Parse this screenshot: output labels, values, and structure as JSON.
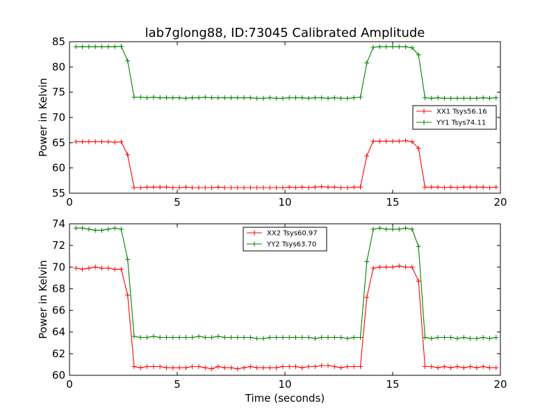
{
  "chart_data": [
    {
      "type": "line",
      "title": "lab7glong88, ID:73045 Calibrated Amplitude",
      "xlabel": "",
      "ylabel": "Power in Kelvin",
      "xlim": [
        0,
        20
      ],
      "ylim": [
        55,
        85
      ],
      "xticks": [
        "0",
        "5",
        "10",
        "15",
        "20"
      ],
      "yticks": [
        "55",
        "60",
        "65",
        "70",
        "75",
        "80",
        "85"
      ],
      "legend_position": "center-right",
      "series": [
        {
          "name": "XX1 Tsys56.16",
          "color": "#ff0000",
          "x": [
            0.3,
            0.6,
            0.9,
            1.2,
            1.5,
            1.8,
            2.1,
            2.4,
            2.7,
            3.0,
            3.3,
            3.6,
            3.9,
            4.2,
            4.5,
            4.8,
            5.1,
            5.4,
            5.7,
            6.0,
            6.3,
            6.6,
            6.9,
            7.2,
            7.5,
            7.8,
            8.1,
            8.4,
            8.7,
            9.0,
            9.3,
            9.6,
            9.9,
            10.2,
            10.5,
            10.8,
            11.1,
            11.4,
            11.7,
            12.0,
            12.3,
            12.6,
            12.9,
            13.2,
            13.5,
            13.8,
            14.1,
            14.4,
            14.7,
            15.0,
            15.3,
            15.6,
            15.9,
            16.2,
            16.5,
            16.8,
            17.1,
            17.4,
            17.7,
            18.0,
            18.3,
            18.6,
            18.9,
            19.2,
            19.5,
            19.8
          ],
          "y": [
            65.2,
            65.2,
            65.2,
            65.2,
            65.2,
            65.2,
            65.1,
            65.2,
            62.6,
            56.1,
            56.1,
            56.2,
            56.2,
            56.2,
            56.2,
            56.1,
            56.1,
            56.2,
            56.1,
            56.1,
            56.1,
            56.1,
            56.2,
            56.1,
            56.1,
            56.1,
            56.1,
            56.1,
            56.1,
            56.1,
            56.1,
            56.1,
            56.1,
            56.2,
            56.1,
            56.2,
            56.1,
            56.2,
            56.3,
            56.2,
            56.2,
            56.1,
            56.1,
            56.2,
            56.2,
            62.4,
            65.3,
            65.3,
            65.3,
            65.3,
            65.3,
            65.4,
            65.2,
            63.9,
            56.2,
            56.2,
            56.2,
            56.1,
            56.2,
            56.1,
            56.2,
            56.2,
            56.2,
            56.2,
            56.1,
            56.2
          ]
        },
        {
          "name": "YY1 Tsys74.11",
          "color": "#008000",
          "x": [
            0.3,
            0.6,
            0.9,
            1.2,
            1.5,
            1.8,
            2.1,
            2.4,
            2.7,
            3.0,
            3.3,
            3.6,
            3.9,
            4.2,
            4.5,
            4.8,
            5.1,
            5.4,
            5.7,
            6.0,
            6.3,
            6.6,
            6.9,
            7.2,
            7.5,
            7.8,
            8.1,
            8.4,
            8.7,
            9.0,
            9.3,
            9.6,
            9.9,
            10.2,
            10.5,
            10.8,
            11.1,
            11.4,
            11.7,
            12.0,
            12.3,
            12.6,
            12.9,
            13.2,
            13.5,
            13.8,
            14.1,
            14.4,
            14.7,
            15.0,
            15.3,
            15.6,
            15.9,
            16.2,
            16.5,
            16.8,
            17.1,
            17.4,
            17.7,
            18.0,
            18.3,
            18.6,
            18.9,
            19.2,
            19.5,
            19.8
          ],
          "y": [
            84.0,
            84.0,
            84.0,
            84.0,
            84.0,
            84.0,
            84.0,
            84.1,
            81.2,
            74.0,
            74.0,
            73.9,
            74.0,
            73.9,
            73.9,
            73.9,
            73.9,
            73.8,
            73.9,
            73.9,
            74.0,
            73.9,
            73.9,
            73.9,
            73.9,
            73.9,
            73.9,
            73.9,
            73.8,
            73.8,
            73.9,
            73.8,
            73.8,
            73.9,
            73.9,
            73.9,
            73.8,
            73.9,
            73.9,
            73.8,
            73.9,
            73.8,
            73.8,
            73.9,
            74.0,
            80.8,
            83.9,
            84.0,
            84.0,
            84.0,
            84.0,
            84.0,
            83.8,
            82.4,
            73.9,
            73.8,
            73.9,
            73.8,
            73.8,
            73.8,
            73.8,
            73.8,
            73.8,
            73.9,
            73.8,
            73.9
          ]
        }
      ]
    },
    {
      "type": "line",
      "title": "",
      "xlabel": "Time (seconds)",
      "ylabel": "Power in Kelvin",
      "xlim": [
        0,
        20
      ],
      "ylim": [
        60,
        74
      ],
      "xticks": [
        "0",
        "5",
        "10",
        "15",
        "20"
      ],
      "yticks": [
        "60",
        "62",
        "64",
        "66",
        "68",
        "70",
        "72",
        "74"
      ],
      "legend_position": "upper-center",
      "series": [
        {
          "name": "XX2 Tsys60.97",
          "color": "#ff0000",
          "x": [
            0.3,
            0.6,
            0.9,
            1.2,
            1.5,
            1.8,
            2.1,
            2.4,
            2.7,
            3.0,
            3.3,
            3.6,
            3.9,
            4.2,
            4.5,
            4.8,
            5.1,
            5.4,
            5.7,
            6.0,
            6.3,
            6.6,
            6.9,
            7.2,
            7.5,
            7.8,
            8.1,
            8.4,
            8.7,
            9.0,
            9.3,
            9.6,
            9.9,
            10.2,
            10.5,
            10.8,
            11.1,
            11.4,
            11.7,
            12.0,
            12.3,
            12.6,
            12.9,
            13.2,
            13.5,
            13.8,
            14.1,
            14.4,
            14.7,
            15.0,
            15.3,
            15.6,
            15.9,
            16.2,
            16.5,
            16.8,
            17.1,
            17.4,
            17.7,
            18.0,
            18.3,
            18.6,
            18.9,
            19.2,
            19.5,
            19.8
          ],
          "y": [
            69.9,
            69.8,
            69.9,
            70.0,
            69.9,
            69.9,
            69.8,
            69.8,
            67.4,
            60.8,
            60.7,
            60.8,
            60.8,
            60.8,
            60.7,
            60.7,
            60.7,
            60.7,
            60.8,
            60.8,
            60.7,
            60.6,
            60.8,
            60.7,
            60.7,
            60.6,
            60.7,
            60.8,
            60.7,
            60.7,
            60.7,
            60.7,
            60.8,
            60.8,
            60.8,
            60.7,
            60.8,
            60.8,
            60.9,
            60.9,
            60.8,
            60.7,
            60.8,
            60.8,
            60.8,
            67.2,
            69.9,
            70.0,
            70.0,
            70.0,
            70.1,
            70.0,
            70.0,
            68.7,
            60.8,
            60.8,
            60.7,
            60.8,
            60.7,
            60.8,
            60.7,
            60.8,
            60.7,
            60.8,
            60.7,
            60.7
          ]
        },
        {
          "name": "YY2 Tsys63.70",
          "color": "#008000",
          "x": [
            0.3,
            0.6,
            0.9,
            1.2,
            1.5,
            1.8,
            2.1,
            2.4,
            2.7,
            3.0,
            3.3,
            3.6,
            3.9,
            4.2,
            4.5,
            4.8,
            5.1,
            5.4,
            5.7,
            6.0,
            6.3,
            6.6,
            6.9,
            7.2,
            7.5,
            7.8,
            8.1,
            8.4,
            8.7,
            9.0,
            9.3,
            9.6,
            9.9,
            10.2,
            10.5,
            10.8,
            11.1,
            11.4,
            11.7,
            12.0,
            12.3,
            12.6,
            12.9,
            13.2,
            13.5,
            13.8,
            14.1,
            14.4,
            14.7,
            15.0,
            15.3,
            15.6,
            15.9,
            16.2,
            16.5,
            16.8,
            17.1,
            17.4,
            17.7,
            18.0,
            18.3,
            18.6,
            18.9,
            19.2,
            19.5,
            19.8
          ],
          "y": [
            73.6,
            73.6,
            73.5,
            73.4,
            73.4,
            73.5,
            73.6,
            73.5,
            70.7,
            63.6,
            63.5,
            63.5,
            63.6,
            63.5,
            63.5,
            63.5,
            63.5,
            63.5,
            63.5,
            63.6,
            63.5,
            63.5,
            63.6,
            63.5,
            63.5,
            63.5,
            63.5,
            63.5,
            63.4,
            63.4,
            63.5,
            63.5,
            63.5,
            63.5,
            63.5,
            63.5,
            63.5,
            63.4,
            63.5,
            63.5,
            63.5,
            63.5,
            63.4,
            63.5,
            63.5,
            70.5,
            73.5,
            73.6,
            73.5,
            73.5,
            73.5,
            73.6,
            73.5,
            71.9,
            63.5,
            63.4,
            63.5,
            63.5,
            63.5,
            63.4,
            63.5,
            63.4,
            63.4,
            63.5,
            63.4,
            63.5
          ]
        }
      ]
    }
  ]
}
